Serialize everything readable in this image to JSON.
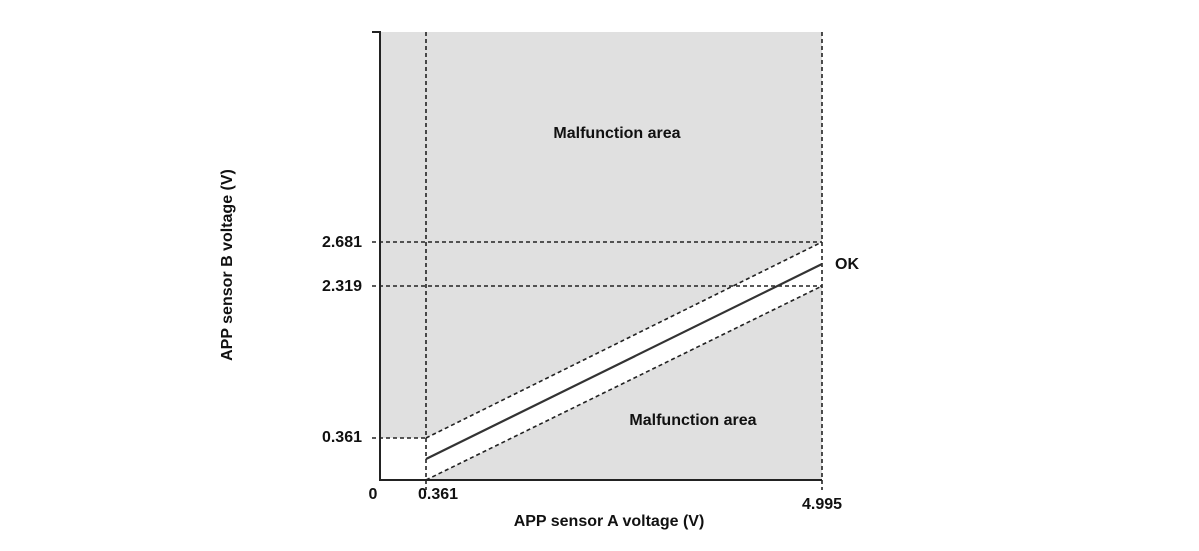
{
  "diagram": {
    "x_axis_label": "APP sensor A voltage (V)",
    "y_axis_label": "APP sensor B voltage (V)",
    "origin_label": "0",
    "x_ticks": [
      "0.361",
      "4.995"
    ],
    "y_ticks": [
      "2.681",
      "2.319",
      "0.361"
    ],
    "upper_region_label": "Malfunction area",
    "lower_region_label": "Malfunction area",
    "band_label": "OK"
  }
}
